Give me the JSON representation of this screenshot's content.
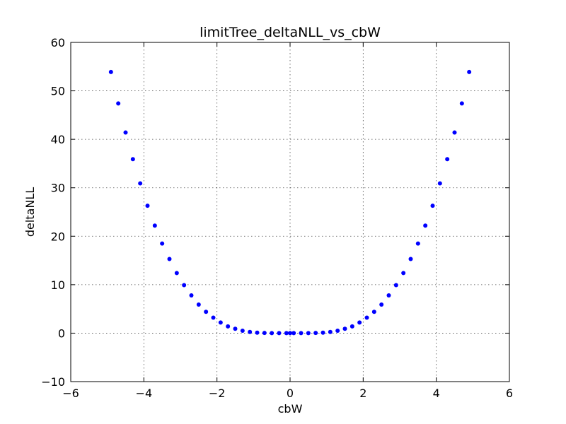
{
  "chart_data": {
    "type": "scatter",
    "title": "limitTree_deltaNLL_vs_cbW",
    "xlabel": "cbW",
    "ylabel": "deltaNLL",
    "xlim": [
      -6,
      6
    ],
    "ylim": [
      -10,
      60
    ],
    "xticks": [
      -6,
      -4,
      -2,
      0,
      2,
      4,
      6
    ],
    "xtick_labels": [
      "−6",
      "−4",
      "−2",
      "0",
      "2",
      "4",
      "6"
    ],
    "yticks": [
      -10,
      0,
      10,
      20,
      30,
      40,
      50,
      60
    ],
    "ytick_labels": [
      "−10",
      "0",
      "10",
      "20",
      "30",
      "40",
      "50",
      "60"
    ],
    "grid": true,
    "marker_color": "#0000ff",
    "series": [
      {
        "x": [
          -4.9,
          -4.7,
          -4.5,
          -4.3,
          -4.1,
          -3.9,
          -3.7,
          -3.5,
          -3.3,
          -3.1,
          -2.9,
          -2.7,
          -2.5,
          -2.3,
          -2.1,
          -1.9,
          -1.7,
          -1.5,
          -1.3,
          -1.1,
          -0.9,
          -0.7,
          -0.5,
          -0.3,
          -0.1,
          0.0,
          0.1,
          0.3,
          0.5,
          0.7,
          0.9,
          1.1,
          1.3,
          1.5,
          1.7,
          1.9,
          2.1,
          2.3,
          2.5,
          2.7,
          2.9,
          3.1,
          3.3,
          3.5,
          3.7,
          3.9,
          4.1,
          4.3,
          4.5,
          4.7,
          4.9
        ],
        "y": [
          53.9,
          47.4,
          41.4,
          35.9,
          30.9,
          26.3,
          22.2,
          18.5,
          15.3,
          12.4,
          9.9,
          7.8,
          5.9,
          4.4,
          3.2,
          2.2,
          1.4,
          0.9,
          0.5,
          0.25,
          0.1,
          0.04,
          0.01,
          0.0,
          0.0,
          0.0,
          0.0,
          0.0,
          0.01,
          0.04,
          0.1,
          0.25,
          0.5,
          0.9,
          1.4,
          2.2,
          3.2,
          4.4,
          5.9,
          7.8,
          9.9,
          12.4,
          15.3,
          18.5,
          22.2,
          26.3,
          30.9,
          35.9,
          41.4,
          47.4,
          53.9
        ]
      }
    ]
  }
}
